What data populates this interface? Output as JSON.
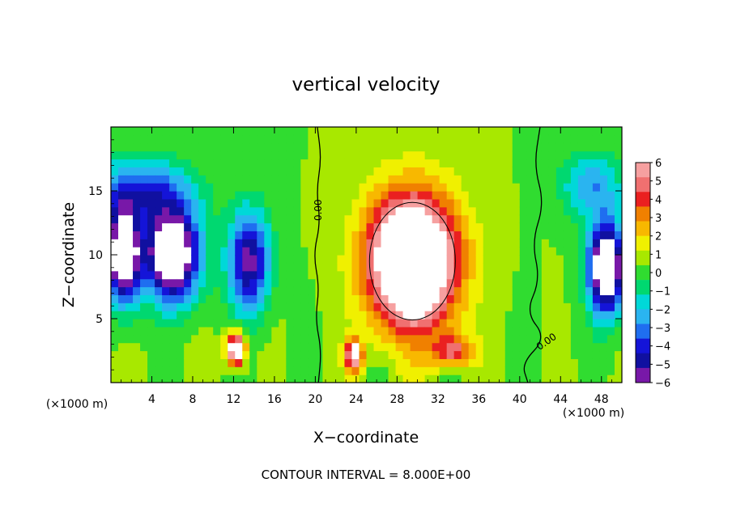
{
  "chart_data": {
    "type": "heatmap",
    "title": "vertical velocity",
    "xlabel": "X−coordinate",
    "ylabel": "Z−coordinate",
    "x_unit_label": "(×1000 m)",
    "x_range": [
      0,
      50
    ],
    "y_range": [
      0,
      20
    ],
    "x_ticks": [
      4,
      8,
      12,
      16,
      20,
      24,
      28,
      32,
      36,
      40,
      44,
      48
    ],
    "y_ticks": [
      5,
      10,
      15
    ],
    "colorbar": {
      "range": [
        -6,
        6
      ],
      "labels": [
        "6",
        "5",
        "4",
        "3",
        "2",
        "1",
        "0",
        "−1",
        "−2",
        "−3",
        "−4",
        "−5",
        "−6"
      ],
      "colors": [
        "#f6a0a0",
        "#f07070",
        "#ea2020",
        "#f08000",
        "#f8b800",
        "#f0f000",
        "#a8e800",
        "#30dc30",
        "#00d870",
        "#00d8d8",
        "#2ab4f0",
        "#1f6ef0",
        "#1414d8",
        "#1010a0",
        "#7818a8"
      ]
    },
    "contour_labels": [
      "0.00",
      "0.00"
    ],
    "features": [
      {
        "type": "updraft",
        "x": 29.5,
        "z": 9.5,
        "sx": 4.3,
        "sz": 5.2,
        "amp": 11
      },
      {
        "type": "updraft",
        "x": 12.2,
        "z": 2.6,
        "sx": 0.9,
        "sz": 1.3,
        "amp": 8
      },
      {
        "type": "updraft",
        "x": 23.8,
        "z": 2.2,
        "sx": 0.8,
        "sz": 1.2,
        "amp": 7
      },
      {
        "type": "updraft",
        "x": 33.5,
        "z": 2.5,
        "sx": 2.0,
        "sz": 1.3,
        "amp": 4
      },
      {
        "type": "downdraft",
        "x": 6.0,
        "z": 10.0,
        "sx": 2.7,
        "sz": 3.6,
        "amp": -9
      },
      {
        "type": "downdraft",
        "x": 1.2,
        "z": 10.0,
        "sx": 1.6,
        "sz": 3.6,
        "amp": -9
      },
      {
        "type": "downdraft",
        "x": 13.5,
        "z": 9.5,
        "sx": 2.0,
        "sz": 4.0,
        "amp": -6
      },
      {
        "type": "downdraft",
        "x": 48.5,
        "z": 9.0,
        "sx": 1.8,
        "sz": 3.6,
        "amp": -9
      },
      {
        "type": "downdraft",
        "x": 3.0,
        "z": 15.0,
        "sx": 5.0,
        "sz": 2.6,
        "amp": -4
      },
      {
        "type": "downdraft",
        "x": 47.0,
        "z": 15.5,
        "sx": 3.0,
        "sz": 2.5,
        "amp": -3
      }
    ]
  },
  "footer": {
    "contour_interval": "CONTOUR INTERVAL = 8.000E+00"
  }
}
